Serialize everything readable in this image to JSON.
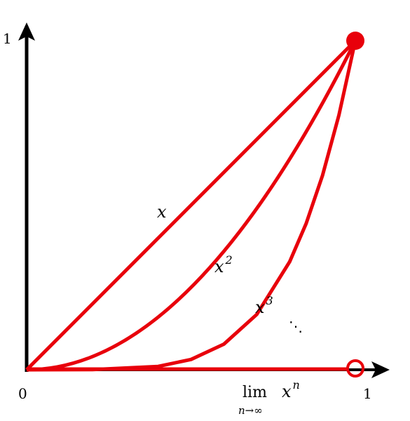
{
  "axes": {
    "y_top_label": "1",
    "origin_label": "0",
    "x_right_label": "1"
  },
  "curve_labels": [
    {
      "base": "x"
    },
    {
      "base": "x",
      "exponent": "2"
    },
    {
      "base": "x",
      "exponent": "3"
    },
    {
      "base": "⋱"
    }
  ],
  "limit_label": {
    "operator": "lim",
    "subscript": "n→∞",
    "base": "x",
    "exponent": "n"
  }
}
